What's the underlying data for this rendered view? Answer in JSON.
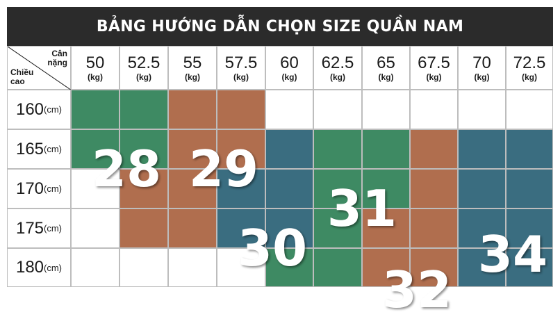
{
  "title": "BẢNG HƯỚNG DẪN CHỌN SIZE QUẦN NAM",
  "corner": {
    "weight_label": "Cân\nnặng",
    "height_label": "Chiều\ncao"
  },
  "weights": [
    "50",
    "52.5",
    "55",
    "57.5",
    "60",
    "62.5",
    "65",
    "67.5",
    "70",
    "72.5"
  ],
  "weight_unit": "(kg)",
  "heights": [
    "160",
    "165",
    "170",
    "175",
    "180"
  ],
  "height_unit": "(cm)",
  "colors": {
    "size_28": "#3e8a63",
    "size_29": "#b06e4e",
    "size_30": "#3a6d80",
    "size_31": "#3e8a63",
    "size_32": "#b06e4e",
    "size_34": "#3a6d80",
    "empty": "#ffffff"
  },
  "grid": [
    [
      "size_28",
      "size_28",
      "size_29",
      "size_29",
      "empty",
      "empty",
      "empty",
      "empty",
      "empty",
      "empty"
    ],
    [
      "size_28",
      "size_28",
      "size_29",
      "size_29",
      "size_30",
      "size_31",
      "size_31",
      "size_32",
      "size_34",
      "size_34"
    ],
    [
      "empty",
      "size_29",
      "size_29",
      "size_30",
      "size_30",
      "size_31",
      "size_31",
      "size_32",
      "size_34",
      "size_34"
    ],
    [
      "empty",
      "size_29",
      "size_29",
      "size_30",
      "size_30",
      "size_31",
      "size_32",
      "size_32",
      "size_34",
      "size_34"
    ],
    [
      "empty",
      "empty",
      "empty",
      "empty",
      "size_31",
      "size_31",
      "size_32",
      "size_32",
      "size_34",
      "size_34"
    ]
  ],
  "sizes": [
    {
      "key": "size_28",
      "label": "28"
    },
    {
      "key": "size_29",
      "label": "29"
    },
    {
      "key": "size_30",
      "label": "30"
    },
    {
      "key": "size_31",
      "label": "31"
    },
    {
      "key": "size_32",
      "label": "32"
    },
    {
      "key": "size_34",
      "label": "34"
    }
  ]
}
